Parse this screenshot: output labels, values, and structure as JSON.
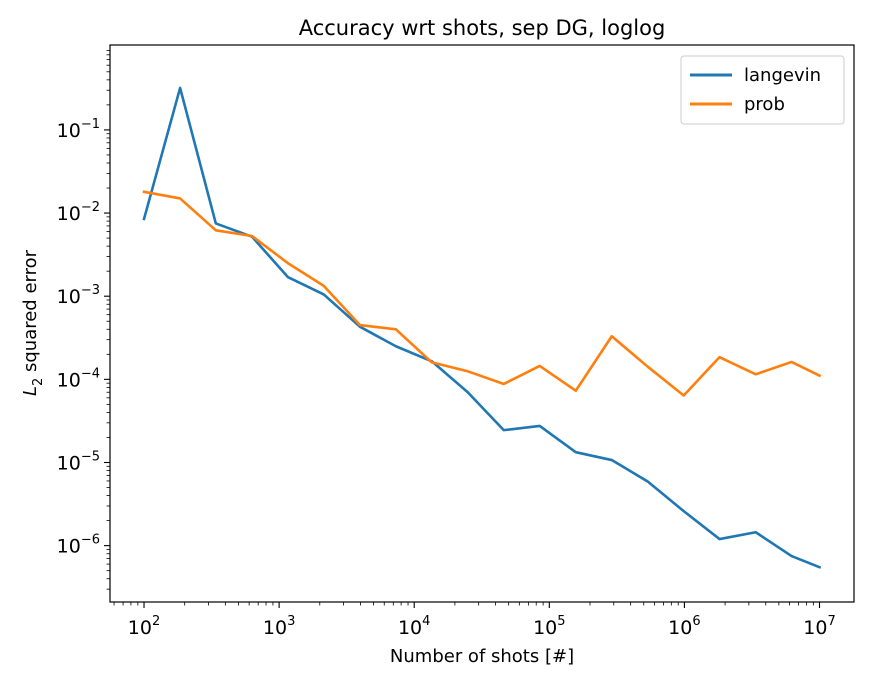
{
  "chart_data": {
    "type": "line",
    "title": "Accuracy wrt shots, sep DG, loglog",
    "xlabel": "Number of shots [#]",
    "ylabel": "L2 squared error",
    "ylabel_base": "L",
    "ylabel_sub": "2",
    "ylabel_rest": " squared error",
    "xscale": "log",
    "yscale": "log",
    "xlim": [
      56,
      18000000
    ],
    "ylim": [
      2.1e-07,
      1.05
    ],
    "grid": false,
    "legend_position": "top-right",
    "x_ticks": [
      {
        "base": "10",
        "exp": "2",
        "value": 100
      },
      {
        "base": "10",
        "exp": "3",
        "value": 1000
      },
      {
        "base": "10",
        "exp": "4",
        "value": 10000
      },
      {
        "base": "10",
        "exp": "5",
        "value": 100000
      },
      {
        "base": "10",
        "exp": "6",
        "value": 1000000
      },
      {
        "base": "10",
        "exp": "7",
        "value": 10000000
      }
    ],
    "y_ticks": [
      {
        "base": "10",
        "exp": "−1",
        "value": 0.1
      },
      {
        "base": "10",
        "exp": "−2",
        "value": 0.01
      },
      {
        "base": "10",
        "exp": "−3",
        "value": 0.001
      },
      {
        "base": "10",
        "exp": "−4",
        "value": 0.0001
      },
      {
        "base": "10",
        "exp": "−5",
        "value": 1e-05
      },
      {
        "base": "10",
        "exp": "−6",
        "value": 1e-06
      }
    ],
    "x": [
      100,
      185,
      340,
      630,
      1160,
      2140,
      3960,
      7310,
      13500,
      24900,
      46000,
      84900,
      157000,
      290000,
      535000,
      988000,
      1820000,
      3370000,
      6210000,
      10000000
    ],
    "series": [
      {
        "name": "langevin",
        "color": "#1f77b4",
        "values": [
          0.0085,
          0.32,
          0.0075,
          0.0052,
          0.0017,
          0.00105,
          0.00043,
          0.00025,
          0.000165,
          7e-05,
          2.45e-05,
          2.75e-05,
          1.33e-05,
          1.07e-05,
          5.9e-06,
          2.6e-06,
          1.2e-06,
          1.45e-06,
          7.5e-07,
          5.5e-07
        ]
      },
      {
        "name": "prob",
        "color": "#ff7f0e",
        "values": [
          0.018,
          0.015,
          0.0062,
          0.0053,
          0.0025,
          0.00133,
          0.00045,
          0.0004,
          0.00016,
          0.000125,
          8.8e-05,
          0.000145,
          7.3e-05,
          0.00033,
          0.000142,
          6.4e-05,
          0.000185,
          0.000115,
          0.000162,
          0.000111
        ]
      }
    ]
  }
}
